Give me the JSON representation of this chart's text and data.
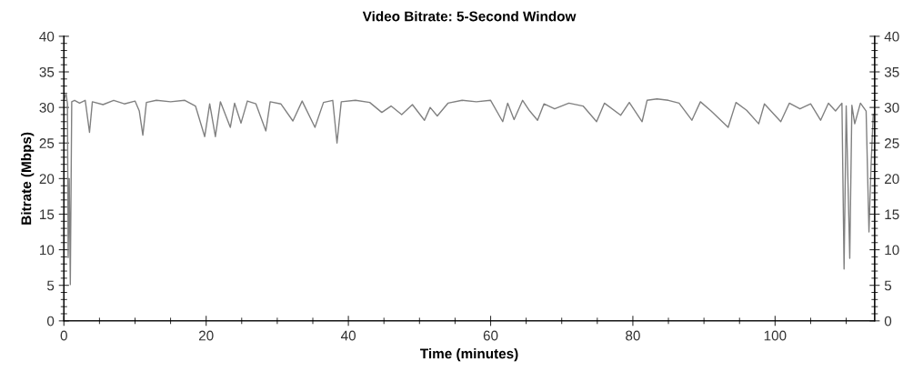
{
  "chart_data": {
    "type": "line",
    "title": "Video Bitrate: 5-Second Window",
    "xlabel": "Time (minutes)",
    "ylabel": "Bitrate (Mbps)",
    "x": [
      0,
      0.3,
      0.5,
      0.6,
      0.75,
      0.9,
      1.1,
      1.5,
      2.2,
      3.0,
      3.6,
      4.0,
      5.5,
      7.0,
      8.5,
      10.0,
      10.6,
      11.1,
      11.6,
      13.0,
      15.0,
      17.0,
      18.5,
      19.8,
      20.5,
      21.3,
      22.0,
      23.4,
      24.0,
      24.9,
      25.8,
      27.0,
      28.4,
      29.0,
      30.5,
      32.2,
      33.5,
      35.3,
      36.5,
      37.8,
      38.4,
      39.0,
      41.0,
      43.0,
      44.7,
      46.0,
      47.5,
      49.0,
      50.7,
      51.5,
      52.5,
      54.0,
      56.0,
      58.0,
      60.0,
      61.7,
      62.4,
      63.3,
      64.5,
      65.5,
      66.6,
      67.5,
      69.0,
      71.0,
      73.0,
      74.9,
      76.0,
      78.3,
      79.5,
      81.3,
      82.0,
      83.4,
      85.0,
      86.5,
      88.3,
      89.5,
      91.0,
      93.4,
      94.5,
      96.0,
      97.7,
      98.5,
      99.5,
      100.8,
      102.0,
      103.5,
      105.0,
      106.4,
      107.5,
      108.5,
      109.4,
      109.7,
      110.0,
      110.5,
      110.8,
      111.2,
      112.0,
      112.8,
      113.2,
      113.5,
      113.8
    ],
    "series": [
      {
        "color": "#808080",
        "values": [
          31.0,
          32.0,
          30.5,
          8.9,
          20.0,
          5.1,
          30.8,
          31.0,
          30.6,
          31.0,
          26.5,
          30.8,
          30.4,
          31.0,
          30.5,
          30.9,
          29.5,
          26.1,
          30.7,
          31.0,
          30.8,
          31.0,
          30.2,
          25.9,
          30.5,
          25.9,
          30.8,
          27.2,
          30.6,
          27.8,
          30.9,
          30.5,
          26.7,
          30.8,
          30.5,
          28.1,
          30.9,
          27.2,
          30.7,
          31.0,
          25.0,
          30.8,
          31.0,
          30.7,
          29.3,
          30.2,
          29.0,
          30.4,
          28.2,
          30.0,
          28.8,
          30.6,
          31.0,
          30.8,
          31.0,
          28.0,
          30.6,
          28.3,
          31.0,
          29.5,
          28.2,
          30.5,
          29.8,
          30.6,
          30.2,
          28.0,
          30.6,
          28.9,
          30.7,
          28.0,
          31.0,
          31.2,
          31.0,
          30.6,
          28.2,
          30.8,
          29.5,
          27.2,
          30.7,
          29.6,
          27.7,
          30.5,
          29.4,
          28.0,
          30.6,
          29.8,
          30.5,
          28.2,
          30.6,
          29.5,
          30.6,
          7.3,
          30.2,
          8.8,
          30.3,
          27.7,
          30.6,
          29.5,
          12.5,
          22.0,
          29.0
        ]
      }
    ],
    "xlim": [
      0,
      114
    ],
    "xticks": [
      0,
      20,
      40,
      60,
      80,
      100
    ],
    "ylim": [
      0,
      40
    ],
    "yticks": [
      0,
      5,
      10,
      15,
      20,
      25,
      30,
      35,
      40
    ],
    "y2lim": [
      0,
      40
    ],
    "y2ticks": [
      0,
      5,
      10,
      15,
      20,
      25,
      30,
      35,
      40
    ],
    "grid": false,
    "legend": false
  }
}
